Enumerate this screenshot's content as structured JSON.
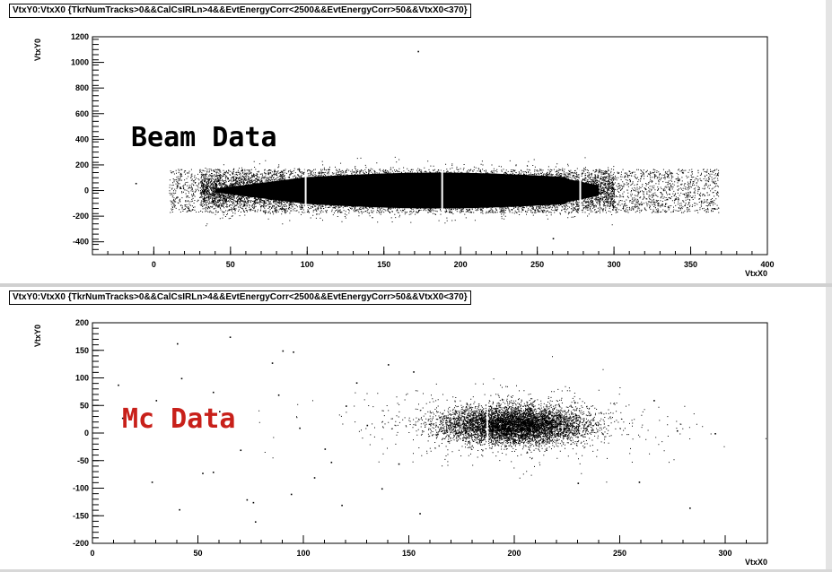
{
  "chart_data": [
    {
      "type": "scatter",
      "title": "VtxY0:VtxX0 {TkrNumTracks>0&&CalCsIRLn>4&&EvtEnergyCorr<2500&&EvtEnergyCorr>50&&VtxX0<370}",
      "xlabel": "VtxX0",
      "ylabel": "VtxY0",
      "xlim": [
        -40,
        400
      ],
      "ylim": [
        -500,
        1200
      ],
      "xticks": [
        0,
        50,
        100,
        150,
        200,
        250,
        300,
        350,
        400
      ],
      "xtick_labels": [
        "0",
        "50",
        "100",
        "150",
        "200",
        "250",
        "300",
        "350",
        "400"
      ],
      "yticks": [
        -400,
        -200,
        0,
        200,
        400,
        600,
        800,
        1000,
        1200
      ],
      "ytick_labels": [
        "-400",
        "-200",
        "0",
        "200",
        "400",
        "600",
        "800",
        "1000",
        "1200"
      ],
      "annotation": {
        "text": "Beam Data",
        "color": "#000000"
      },
      "marker_color": "#000000",
      "dense_x_range": [
        10,
        368
      ],
      "dense_y_range": [
        -170,
        170
      ],
      "outliers": [
        {
          "x": -12,
          "y": 60
        },
        {
          "x": 172,
          "y": 1090
        },
        {
          "x": 260,
          "y": -370
        }
      ],
      "gaps_at_x": [
        99,
        188,
        278
      ]
    },
    {
      "type": "scatter",
      "title": "VtxY0:VtxX0 {TkrNumTracks>0&&CalCsIRLn>4&&EvtEnergyCorr<2500&&EvtEnergyCorr>50&&VtxX0<370}",
      "xlabel": "VtxX0",
      "ylabel": "VtxY0",
      "xlim": [
        0,
        320
      ],
      "ylim": [
        -200,
        200
      ],
      "xticks": [
        0,
        50,
        100,
        150,
        200,
        250,
        300
      ],
      "xtick_labels": [
        "0",
        "50",
        "100",
        "150",
        "200",
        "250",
        "300"
      ],
      "yticks": [
        -200,
        -150,
        -100,
        -50,
        0,
        50,
        100,
        150,
        200
      ],
      "ytick_labels": [
        "-200",
        "-150",
        "-100",
        "-50",
        "0",
        "50",
        "100",
        "150",
        "200"
      ],
      "annotation": {
        "text": "Mc Data",
        "color": "#c8201a"
      },
      "marker_color": "#000000",
      "core_center": {
        "x": 200,
        "y": 15
      },
      "core_x_range": [
        160,
        250
      ],
      "core_y_range": [
        -25,
        55
      ],
      "gaps_at_x": [
        187
      ],
      "outliers": [
        {
          "x": 40,
          "y": 163
        },
        {
          "x": 65,
          "y": 175
        },
        {
          "x": 90,
          "y": 150
        },
        {
          "x": 95,
          "y": 148
        },
        {
          "x": 85,
          "y": 128
        },
        {
          "x": 42,
          "y": 100
        },
        {
          "x": 12,
          "y": 88
        },
        {
          "x": 57,
          "y": 75
        },
        {
          "x": 14,
          "y": 28
        },
        {
          "x": 28,
          "y": -88
        },
        {
          "x": 52,
          "y": -72
        },
        {
          "x": 57,
          "y": -70
        },
        {
          "x": 73,
          "y": -120
        },
        {
          "x": 76,
          "y": -125
        },
        {
          "x": 41,
          "y": -138
        },
        {
          "x": 77,
          "y": -160
        },
        {
          "x": 94,
          "y": -110
        },
        {
          "x": 155,
          "y": -145
        },
        {
          "x": 140,
          "y": 125
        },
        {
          "x": 125,
          "y": 92
        },
        {
          "x": 113,
          "y": -52
        },
        {
          "x": 137,
          "y": -100
        },
        {
          "x": 110,
          "y": -28
        },
        {
          "x": 283,
          "y": -135
        },
        {
          "x": 266,
          "y": 60
        },
        {
          "x": 277,
          "y": 5
        },
        {
          "x": 295,
          "y": 0
        },
        {
          "x": 259,
          "y": -88
        },
        {
          "x": 152,
          "y": 112
        },
        {
          "x": 120,
          "y": 50
        },
        {
          "x": 130,
          "y": 15
        },
        {
          "x": 98,
          "y": 10
        },
        {
          "x": 105,
          "y": -80
        },
        {
          "x": 145,
          "y": -55
        },
        {
          "x": 70,
          "y": -30
        },
        {
          "x": 60,
          "y": 40
        },
        {
          "x": 30,
          "y": 60
        },
        {
          "x": 88,
          "y": 70
        },
        {
          "x": 118,
          "y": -130
        },
        {
          "x": 230,
          "y": -90
        }
      ]
    }
  ]
}
